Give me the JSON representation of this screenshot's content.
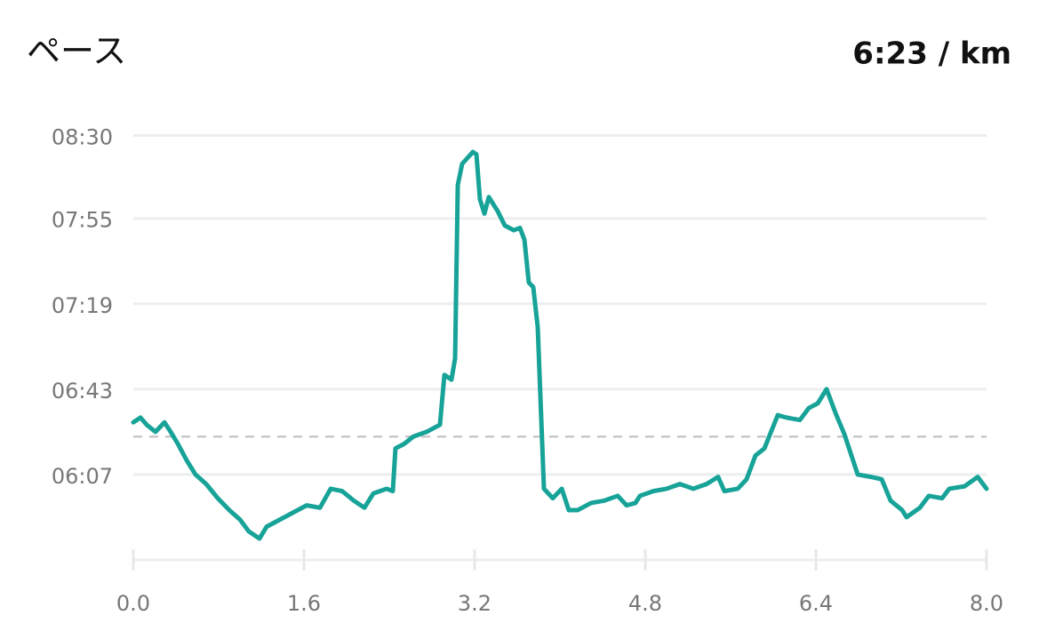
{
  "chart_data": {
    "type": "line",
    "title": "ペース",
    "summary": "6:23 / km",
    "x": [
      0,
      0.067,
      0.125,
      0.208,
      0.292,
      0.35,
      0.417,
      0.5,
      0.583,
      0.683,
      0.792,
      0.9,
      1.0,
      1.083,
      1.183,
      1.25,
      1.375,
      1.5,
      1.625,
      1.75,
      1.85,
      1.958,
      2.067,
      2.167,
      2.25,
      2.375,
      2.433,
      2.458,
      2.542,
      2.625,
      2.75,
      2.875,
      2.917,
      2.983,
      3.017,
      3.042,
      3.083,
      3.183,
      3.217,
      3.25,
      3.292,
      3.333,
      3.417,
      3.483,
      3.567,
      3.625,
      3.667,
      3.708,
      3.75,
      3.792,
      3.85,
      3.933,
      4.017,
      4.083,
      4.167,
      4.292,
      4.417,
      4.542,
      4.625,
      4.708,
      4.75,
      4.875,
      5.0,
      5.125,
      5.25,
      5.375,
      5.483,
      5.542,
      5.667,
      5.75,
      5.833,
      5.917,
      6.042,
      6.125,
      6.25,
      6.333,
      6.417,
      6.5,
      6.583,
      6.667,
      6.792,
      6.917,
      7.017,
      7.1,
      7.208,
      7.25,
      7.375,
      7.458,
      7.583,
      7.65,
      7.792,
      7.917,
      8.0
    ],
    "series": [
      {
        "color": "#17a398",
        "values": [
          389,
          391,
          388,
          385,
          389,
          385,
          380,
          373,
          367,
          363,
          357,
          352,
          348,
          343,
          340,
          345,
          348,
          351,
          354,
          353,
          361,
          360,
          356,
          353,
          359,
          361,
          360,
          378,
          380,
          383,
          385,
          388,
          409,
          407,
          416,
          489,
          498,
          503,
          502,
          483,
          477,
          484,
          478,
          472,
          470,
          471,
          466,
          448,
          446,
          429,
          361,
          357,
          361,
          352,
          352,
          355,
          356,
          358,
          354,
          355,
          358,
          360,
          361,
          363,
          361,
          363,
          366,
          360,
          361,
          365,
          375,
          378,
          392,
          391,
          390,
          395,
          397,
          403,
          393,
          384,
          367,
          366,
          365,
          356,
          352,
          349,
          353,
          358,
          357,
          361,
          362,
          366,
          361
        ]
      }
    ],
    "average": 383,
    "xlim": [
      0,
      8
    ],
    "xticks": [
      {
        "value": 0,
        "label": "0.0"
      },
      1.6,
      3.2,
      4.8,
      6.4,
      {
        "value": 8,
        "label": "8.0"
      }
    ],
    "ylim": [
      331,
      515
    ],
    "yticks": [
      {
        "value": 367,
        "label": "06:07"
      },
      {
        "value": 403,
        "label": "06:43"
      },
      {
        "value": 439,
        "label": "07:19"
      },
      {
        "value": 475,
        "label": "07:55"
      },
      {
        "value": 510,
        "label": "08:30"
      }
    ],
    "grid": true
  }
}
